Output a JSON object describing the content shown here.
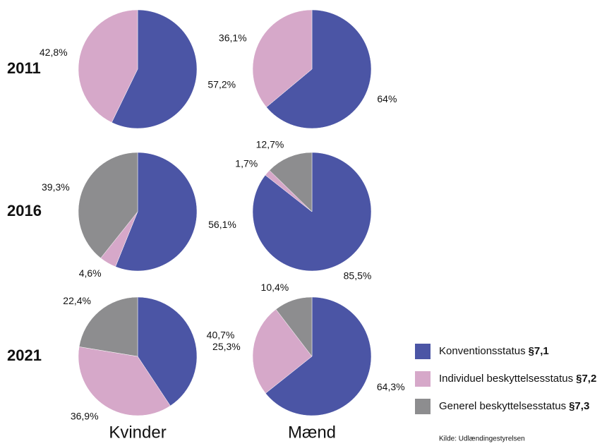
{
  "chart_data": {
    "type": "pie",
    "row_labels": [
      "2011",
      "2016",
      "2021"
    ],
    "column_labels": [
      "Kvinder",
      "Mænd"
    ],
    "series": [
      {
        "name": "Konventionsstatus",
        "code": "§7,1",
        "color": "#4b55a5"
      },
      {
        "name": "Individuel beskyttelsesstatus",
        "code": "§7,2",
        "color": "#d6a8c9"
      },
      {
        "name": "Generel beskyttelsesstatus",
        "code": "§7,3",
        "color": "#8d8d8f"
      }
    ],
    "pies": [
      {
        "row": 0,
        "col": 0,
        "values": [
          57.2,
          42.8,
          null
        ],
        "value_labels": [
          "57,2%",
          "42,8%",
          null
        ]
      },
      {
        "row": 0,
        "col": 1,
        "values": [
          64,
          36.1,
          null
        ],
        "value_labels": [
          "64%",
          "36,1%",
          null
        ]
      },
      {
        "row": 1,
        "col": 0,
        "values": [
          56.1,
          4.6,
          39.3
        ],
        "value_labels": [
          "56,1%",
          "4,6%",
          "39,3%"
        ]
      },
      {
        "row": 1,
        "col": 1,
        "values": [
          85.5,
          1.7,
          12.7
        ],
        "value_labels": [
          "85,5%",
          "1,7%",
          "12,7%"
        ]
      },
      {
        "row": 2,
        "col": 0,
        "values": [
          40.7,
          36.9,
          22.4
        ],
        "value_labels": [
          "40,7%",
          "36,9%",
          "22,4%"
        ]
      },
      {
        "row": 2,
        "col": 1,
        "values": [
          64.3,
          25.3,
          10.4
        ],
        "value_labels": [
          "64,3%",
          "25,3%",
          "10,4%"
        ]
      }
    ],
    "source": "Kilde: Udlændingestyrelsen"
  }
}
